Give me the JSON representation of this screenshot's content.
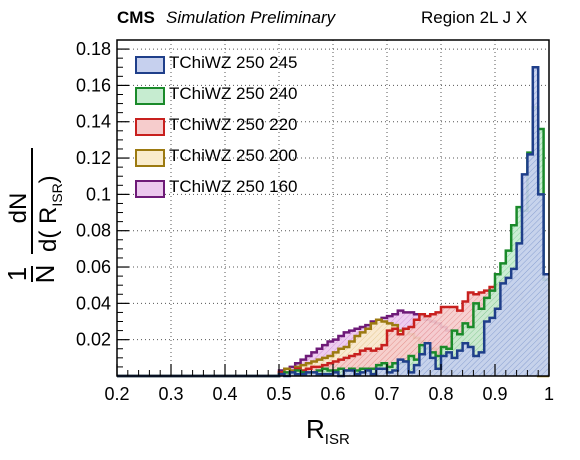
{
  "header": {
    "experiment": "CMS",
    "status": "Simulation Preliminary",
    "region": "Region 2L J X"
  },
  "chart_data": {
    "type": "step-histogram",
    "xlabel_main": "R",
    "xlabel_sub": "ISR",
    "ylabel_num": "dN",
    "ylabel_den_main": "d( R",
    "ylabel_den_sub": "ISR",
    "ylabel_den_close": ")",
    "ylabel_prefix_num": "1",
    "ylabel_prefix_den": "N",
    "xlim": [
      0.2,
      1.0
    ],
    "ylim": [
      0.0,
      0.185
    ],
    "x_ticks": [
      "0.2",
      "0.3",
      "0.4",
      "0.5",
      "0.6",
      "0.7",
      "0.8",
      "0.9",
      "1"
    ],
    "y_ticks": [
      "0.02",
      "0.04",
      "0.06",
      "0.08",
      "0.1",
      "0.12",
      "0.14",
      "0.16",
      "0.18"
    ],
    "grid": true,
    "legend_position": "top-left",
    "bins": 80,
    "series": [
      {
        "name": "TChiWZ 250 245",
        "color": "#1f3f8a",
        "fill": "#b9c6ea",
        "values": [
          0.0,
          0.0,
          0.0,
          0.0,
          0.0,
          0.0,
          0.0,
          0.0,
          0.0,
          0.0,
          0.0,
          0.0,
          0.0,
          0.0,
          0.0,
          0.0,
          0.0,
          0.0,
          0.0,
          0.0,
          0.0,
          0.0,
          0.0,
          0.0,
          0.0,
          0.0,
          0.0,
          0.0,
          0.0,
          0.0,
          0.001,
          0.0,
          0.002,
          0.001,
          0.001,
          0.002,
          0.002,
          0.001,
          0.001,
          0.001,
          0.002,
          0.0,
          0.003,
          0.003,
          0.001,
          0.002,
          0.003,
          0.001,
          0.004,
          0.004,
          0.002,
          0.003,
          0.009,
          0.008,
          0.002,
          0.006,
          0.012,
          0.018,
          0.01,
          0.004,
          0.011,
          0.013,
          0.01,
          0.014,
          0.018,
          0.016,
          0.011,
          0.013,
          0.03,
          0.032,
          0.037,
          0.051,
          0.054,
          0.059,
          0.073,
          0.111,
          0.122,
          0.17,
          0.1,
          0.056
        ]
      },
      {
        "name": "TChiWZ 250 240",
        "color": "#1a8a2a",
        "fill": "#b9e6c0",
        "values": [
          0.0,
          0.0,
          0.0,
          0.0,
          0.0,
          0.0,
          0.0,
          0.0,
          0.0,
          0.0,
          0.0,
          0.0,
          0.0,
          0.0,
          0.0,
          0.0,
          0.0,
          0.0,
          0.0,
          0.0,
          0.0,
          0.0,
          0.0,
          0.0,
          0.0,
          0.0,
          0.0,
          0.0,
          0.0,
          0.0,
          0.001,
          0.002,
          0.001,
          0.003,
          0.002,
          0.001,
          0.002,
          0.003,
          0.004,
          0.003,
          0.003,
          0.004,
          0.003,
          0.004,
          0.003,
          0.004,
          0.004,
          0.004,
          0.006,
          0.007,
          0.005,
          0.007,
          0.007,
          0.008,
          0.011,
          0.009,
          0.017,
          0.015,
          0.013,
          0.011,
          0.016,
          0.015,
          0.025,
          0.023,
          0.029,
          0.027,
          0.04,
          0.037,
          0.043,
          0.047,
          0.056,
          0.062,
          0.069,
          0.083,
          0.093,
          0.091,
          0.123,
          0.148,
          0.136,
          0.053
        ]
      },
      {
        "name": "TChiWZ 250 220",
        "color": "#c8201e",
        "fill": "#f3bcbc",
        "values": [
          0.0,
          0.0,
          0.0,
          0.0,
          0.0,
          0.0,
          0.0,
          0.0,
          0.0,
          0.0,
          0.0,
          0.0,
          0.0,
          0.0,
          0.0,
          0.0,
          0.0,
          0.0,
          0.0,
          0.0,
          0.0,
          0.0,
          0.0,
          0.0,
          0.0,
          0.0,
          0.0,
          0.0,
          0.0,
          0.0,
          0.002,
          0.001,
          0.002,
          0.004,
          0.003,
          0.004,
          0.005,
          0.005,
          0.006,
          0.007,
          0.008,
          0.009,
          0.01,
          0.011,
          0.012,
          0.014,
          0.015,
          0.014,
          0.015,
          0.017,
          0.025,
          0.026,
          0.023,
          0.026,
          0.027,
          0.031,
          0.034,
          0.033,
          0.034,
          0.035,
          0.038,
          0.038,
          0.038,
          0.036,
          0.041,
          0.046,
          0.045,
          0.046,
          0.047,
          0.049,
          0.05,
          0.052,
          0.049,
          0.048,
          0.046,
          0.041,
          0.036,
          0.023,
          0.01,
          0.003
        ]
      },
      {
        "name": "TChiWZ 250 200",
        "color": "#9c7a10",
        "fill": "#f8e7bf",
        "values": [
          0.0,
          0.0,
          0.0,
          0.0,
          0.0,
          0.0,
          0.0,
          0.0,
          0.0,
          0.0,
          0.0,
          0.0,
          0.0,
          0.0,
          0.0,
          0.0,
          0.0,
          0.0,
          0.0,
          0.0,
          0.0,
          0.0,
          0.0,
          0.0,
          0.0,
          0.0,
          0.0,
          0.0,
          0.0,
          0.0,
          0.002,
          0.004,
          0.003,
          0.005,
          0.006,
          0.007,
          0.008,
          0.009,
          0.01,
          0.011,
          0.013,
          0.015,
          0.016,
          0.019,
          0.022,
          0.024,
          0.026,
          0.029,
          0.031,
          0.03,
          0.029,
          0.028,
          0.025,
          0.026,
          0.023,
          0.021,
          0.019,
          0.017,
          0.015,
          0.013,
          0.012,
          0.011,
          0.01,
          0.009,
          0.008,
          0.007,
          0.006,
          0.006,
          0.005,
          0.004,
          0.004,
          0.003,
          0.003,
          0.002,
          0.002,
          0.001,
          0.001,
          0.001,
          0.0,
          0.0
        ]
      },
      {
        "name": "TChiWZ 250 160",
        "color": "#6e1a78",
        "fill": "#e3b8e6",
        "values": [
          0.0,
          0.0,
          0.0,
          0.0,
          0.0,
          0.0,
          0.0,
          0.0,
          0.0,
          0.0,
          0.0,
          0.0,
          0.0,
          0.0,
          0.0,
          0.0,
          0.0,
          0.0,
          0.0,
          0.0,
          0.0,
          0.0,
          0.0,
          0.0,
          0.0,
          0.0,
          0.0,
          0.0,
          0.0,
          0.0,
          0.003,
          0.004,
          0.005,
          0.007,
          0.009,
          0.011,
          0.013,
          0.015,
          0.017,
          0.019,
          0.02,
          0.022,
          0.024,
          0.025,
          0.026,
          0.027,
          0.028,
          0.03,
          0.031,
          0.032,
          0.033,
          0.034,
          0.036,
          0.035,
          0.035,
          0.034,
          0.033,
          0.031,
          0.03,
          0.029,
          0.027,
          0.025,
          0.023,
          0.021,
          0.019,
          0.017,
          0.015,
          0.013,
          0.011,
          0.009,
          0.008,
          0.007,
          0.006,
          0.005,
          0.004,
          0.003,
          0.002,
          0.002,
          0.001,
          0.001
        ]
      }
    ]
  }
}
